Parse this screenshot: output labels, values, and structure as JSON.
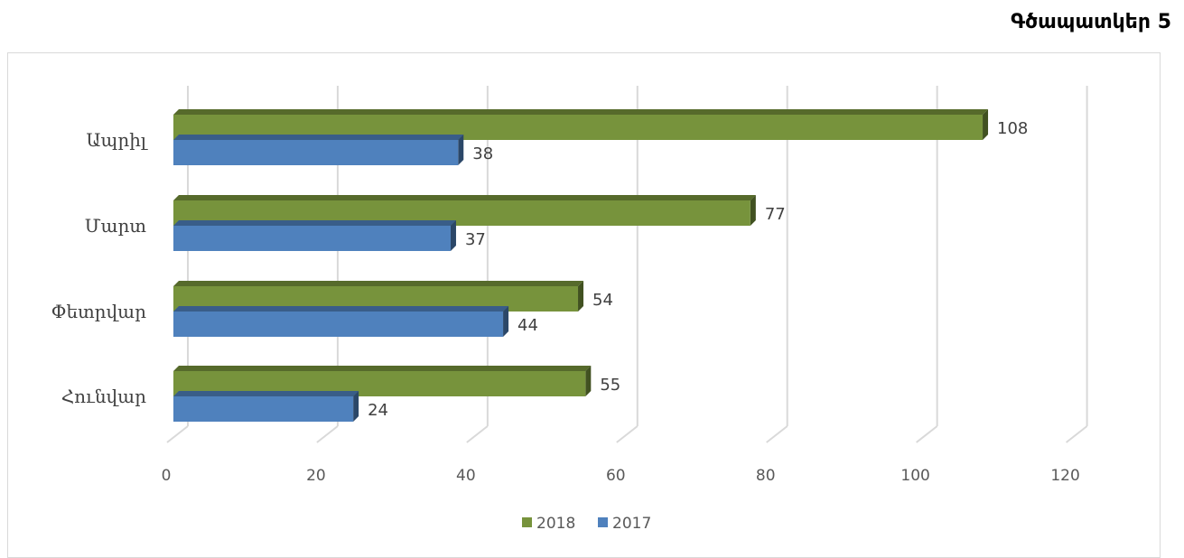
{
  "figure_label": "Գծապատկեր 5",
  "chart_data": {
    "type": "bar",
    "orientation": "horizontal",
    "style": "3d",
    "categories": [
      "Հունվար",
      "Փետրվար",
      "Մարտ",
      "Ապրիլ"
    ],
    "series": [
      {
        "name": "2018",
        "color": "#77933c",
        "values": [
          55,
          54,
          77,
          108
        ]
      },
      {
        "name": "2017",
        "color": "#4f81bd",
        "values": [
          24,
          44,
          37,
          38
        ]
      }
    ],
    "xlim": [
      0,
      120
    ],
    "xticks": [
      "0",
      "20",
      "40",
      "60",
      "80",
      "100",
      "120"
    ],
    "grid": true,
    "data_labels": true,
    "legend_position": "bottom"
  }
}
